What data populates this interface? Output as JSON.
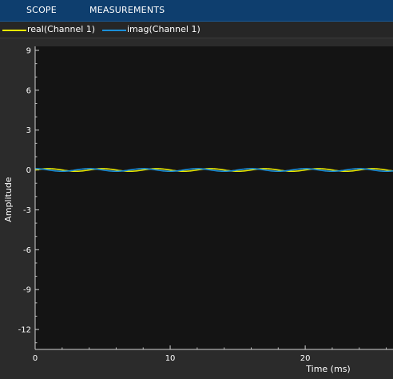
{
  "toolstrip": {
    "tabs": [
      {
        "label": "SCOPE"
      },
      {
        "label": "MEASUREMENTS"
      }
    ]
  },
  "legend": {
    "items": [
      {
        "label": "real(Channel 1)",
        "color": "#e8e800"
      },
      {
        "label": "imag(Channel 1)",
        "color": "#1a8fd9"
      }
    ]
  },
  "chart_data": {
    "type": "line",
    "title": "",
    "xlabel": "Time (ms)",
    "ylabel": "Amplitude",
    "xlim": [
      0,
      26.5
    ],
    "ylim": [
      -13.5,
      9.3
    ],
    "x_ticks": [
      0,
      10,
      20
    ],
    "y_ticks": [
      9,
      6,
      3,
      0,
      -3,
      -6,
      -9,
      -12
    ],
    "grid": false,
    "background": "#141414",
    "series": [
      {
        "name": "real(Channel 1)",
        "color": "#e8e800",
        "amplitude": 0.1,
        "period_ms": 4,
        "phase": 0
      },
      {
        "name": "imag(Channel 1)",
        "color": "#1a8fd9",
        "amplitude": 0.1,
        "period_ms": 4,
        "phase": 1.5708
      }
    ]
  }
}
